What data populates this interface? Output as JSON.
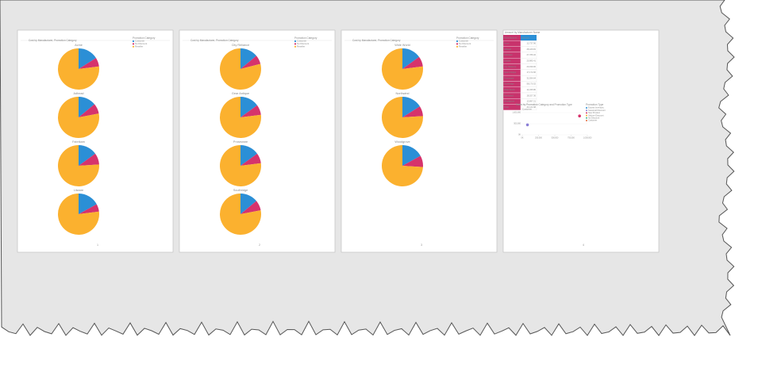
{
  "pages": [
    {
      "number": "1",
      "title": "Cost by Manufacturer, Promotion Category",
      "legend": {
        "title": "Promotion Category",
        "items": [
          {
            "name": "Customer",
            "color": "#2b8fd6"
          },
          {
            "name": "No Discount",
            "color": "#d6336c"
          },
          {
            "name": "Reseller",
            "color": "#fbb12f"
          }
        ]
      },
      "pies": [
        {
          "label": "Acme",
          "values": [
            16,
            7,
            77
          ]
        },
        {
          "label": "Adhead",
          "values": [
            14,
            8,
            78
          ]
        },
        {
          "label": "Fabrikam",
          "values": [
            15,
            9,
            76
          ]
        },
        {
          "label": "Litware",
          "values": [
            17,
            6,
            77
          ]
        }
      ]
    },
    {
      "number": "2",
      "title": "Cost by Manufacturer, Promotion Category",
      "legend": {
        "title": "Promotion Category",
        "items": [
          {
            "name": "Customer",
            "color": "#2b8fd6"
          },
          {
            "name": "No Discount",
            "color": "#d6336c"
          },
          {
            "name": "Reseller",
            "color": "#fbb12f"
          }
        ]
      },
      "pies": [
        {
          "label": "City Reliance",
          "values": [
            14,
            7,
            79
          ]
        },
        {
          "label": "Gear Antique",
          "values": [
            15,
            8,
            77
          ]
        },
        {
          "label": "Proseware",
          "values": [
            15,
            8,
            77
          ]
        },
        {
          "label": "Southridge",
          "values": [
            14,
            8,
            78
          ]
        }
      ]
    },
    {
      "number": "3",
      "title": "Cost by Manufacturer, Promotion Category",
      "legend": {
        "title": "Promotion Category",
        "items": [
          {
            "name": "Customer",
            "color": "#2b8fd6"
          },
          {
            "name": "No Discount",
            "color": "#d6336c"
          },
          {
            "name": "Reseller",
            "color": "#fbb12f"
          }
        ]
      },
      "pies": [
        {
          "label": "Wide World",
          "values": [
            15,
            8,
            77
          ]
        },
        {
          "label": "Northwind",
          "values": [
            16,
            8,
            76
          ]
        },
        {
          "label": "Woodgrove",
          "values": [
            17,
            9,
            74
          ]
        }
      ]
    },
    {
      "number": "4",
      "table": {
        "title": "Amount by Manufacturer Name",
        "columns": [
          "Manufacturer",
          "Amount"
        ],
        "rows": [
          [
            "Acme",
            "12,737.96"
          ],
          [
            "Adhead",
            "28,426.81"
          ],
          [
            "Fabrikam",
            "27,786.32"
          ],
          [
            "Litware",
            "20,985.41"
          ],
          [
            "City Reliance",
            "20,039.00"
          ],
          [
            "Gear Antique",
            "17,172.00"
          ],
          [
            "Proseware",
            "32,594.64"
          ],
          [
            "Southridge",
            "58,170.32"
          ],
          [
            "Wide World",
            "14,035.80"
          ],
          [
            "Northwind",
            "18,027.36"
          ],
          [
            "Woodgrove",
            "13,897.21"
          ],
          [
            "Total",
            "24,121.68"
          ]
        ]
      },
      "scatter": {
        "title": "Sales by Promotion Category and Promotion Type",
        "x_label": "Customer",
        "xlim": [
          0,
          1000000
        ],
        "ylim": [
          0,
          1000000
        ],
        "xticks": [
          {
            "value": 0,
            "label": "0K"
          },
          {
            "value": 250000,
            "label": "250,000"
          },
          {
            "value": 500000,
            "label": "500,000"
          },
          {
            "value": 750000,
            "label": "750,000"
          },
          {
            "value": 1000000,
            "label": "1,000,000"
          }
        ],
        "yticks": [
          {
            "value": 0,
            "label": "0K"
          },
          {
            "value": 500000,
            "label": "500,000"
          },
          {
            "value": 1000000,
            "label": "1,000,000"
          }
        ],
        "points": [
          {
            "x": 80000,
            "y": 450000,
            "color": "#8b7fd6"
          },
          {
            "x": 880000,
            "y": 850000,
            "color": "#d6336c"
          }
        ],
        "legend": {
          "title": "Promotion Type",
          "items": [
            {
              "name": "Excess Inventory",
              "color": "#2b8fd6"
            },
            {
              "name": "Seasonal Discount",
              "color": "#8b7fd6"
            },
            {
              "name": "New Product",
              "color": "#d6336c"
            },
            {
              "name": "Volume Discount",
              "color": "#fbb12f"
            },
            {
              "name": "No Discount",
              "color": "#3fb68b"
            },
            {
              "name": "Customer",
              "color": "#e56b3a"
            }
          ]
        }
      }
    }
  ]
}
